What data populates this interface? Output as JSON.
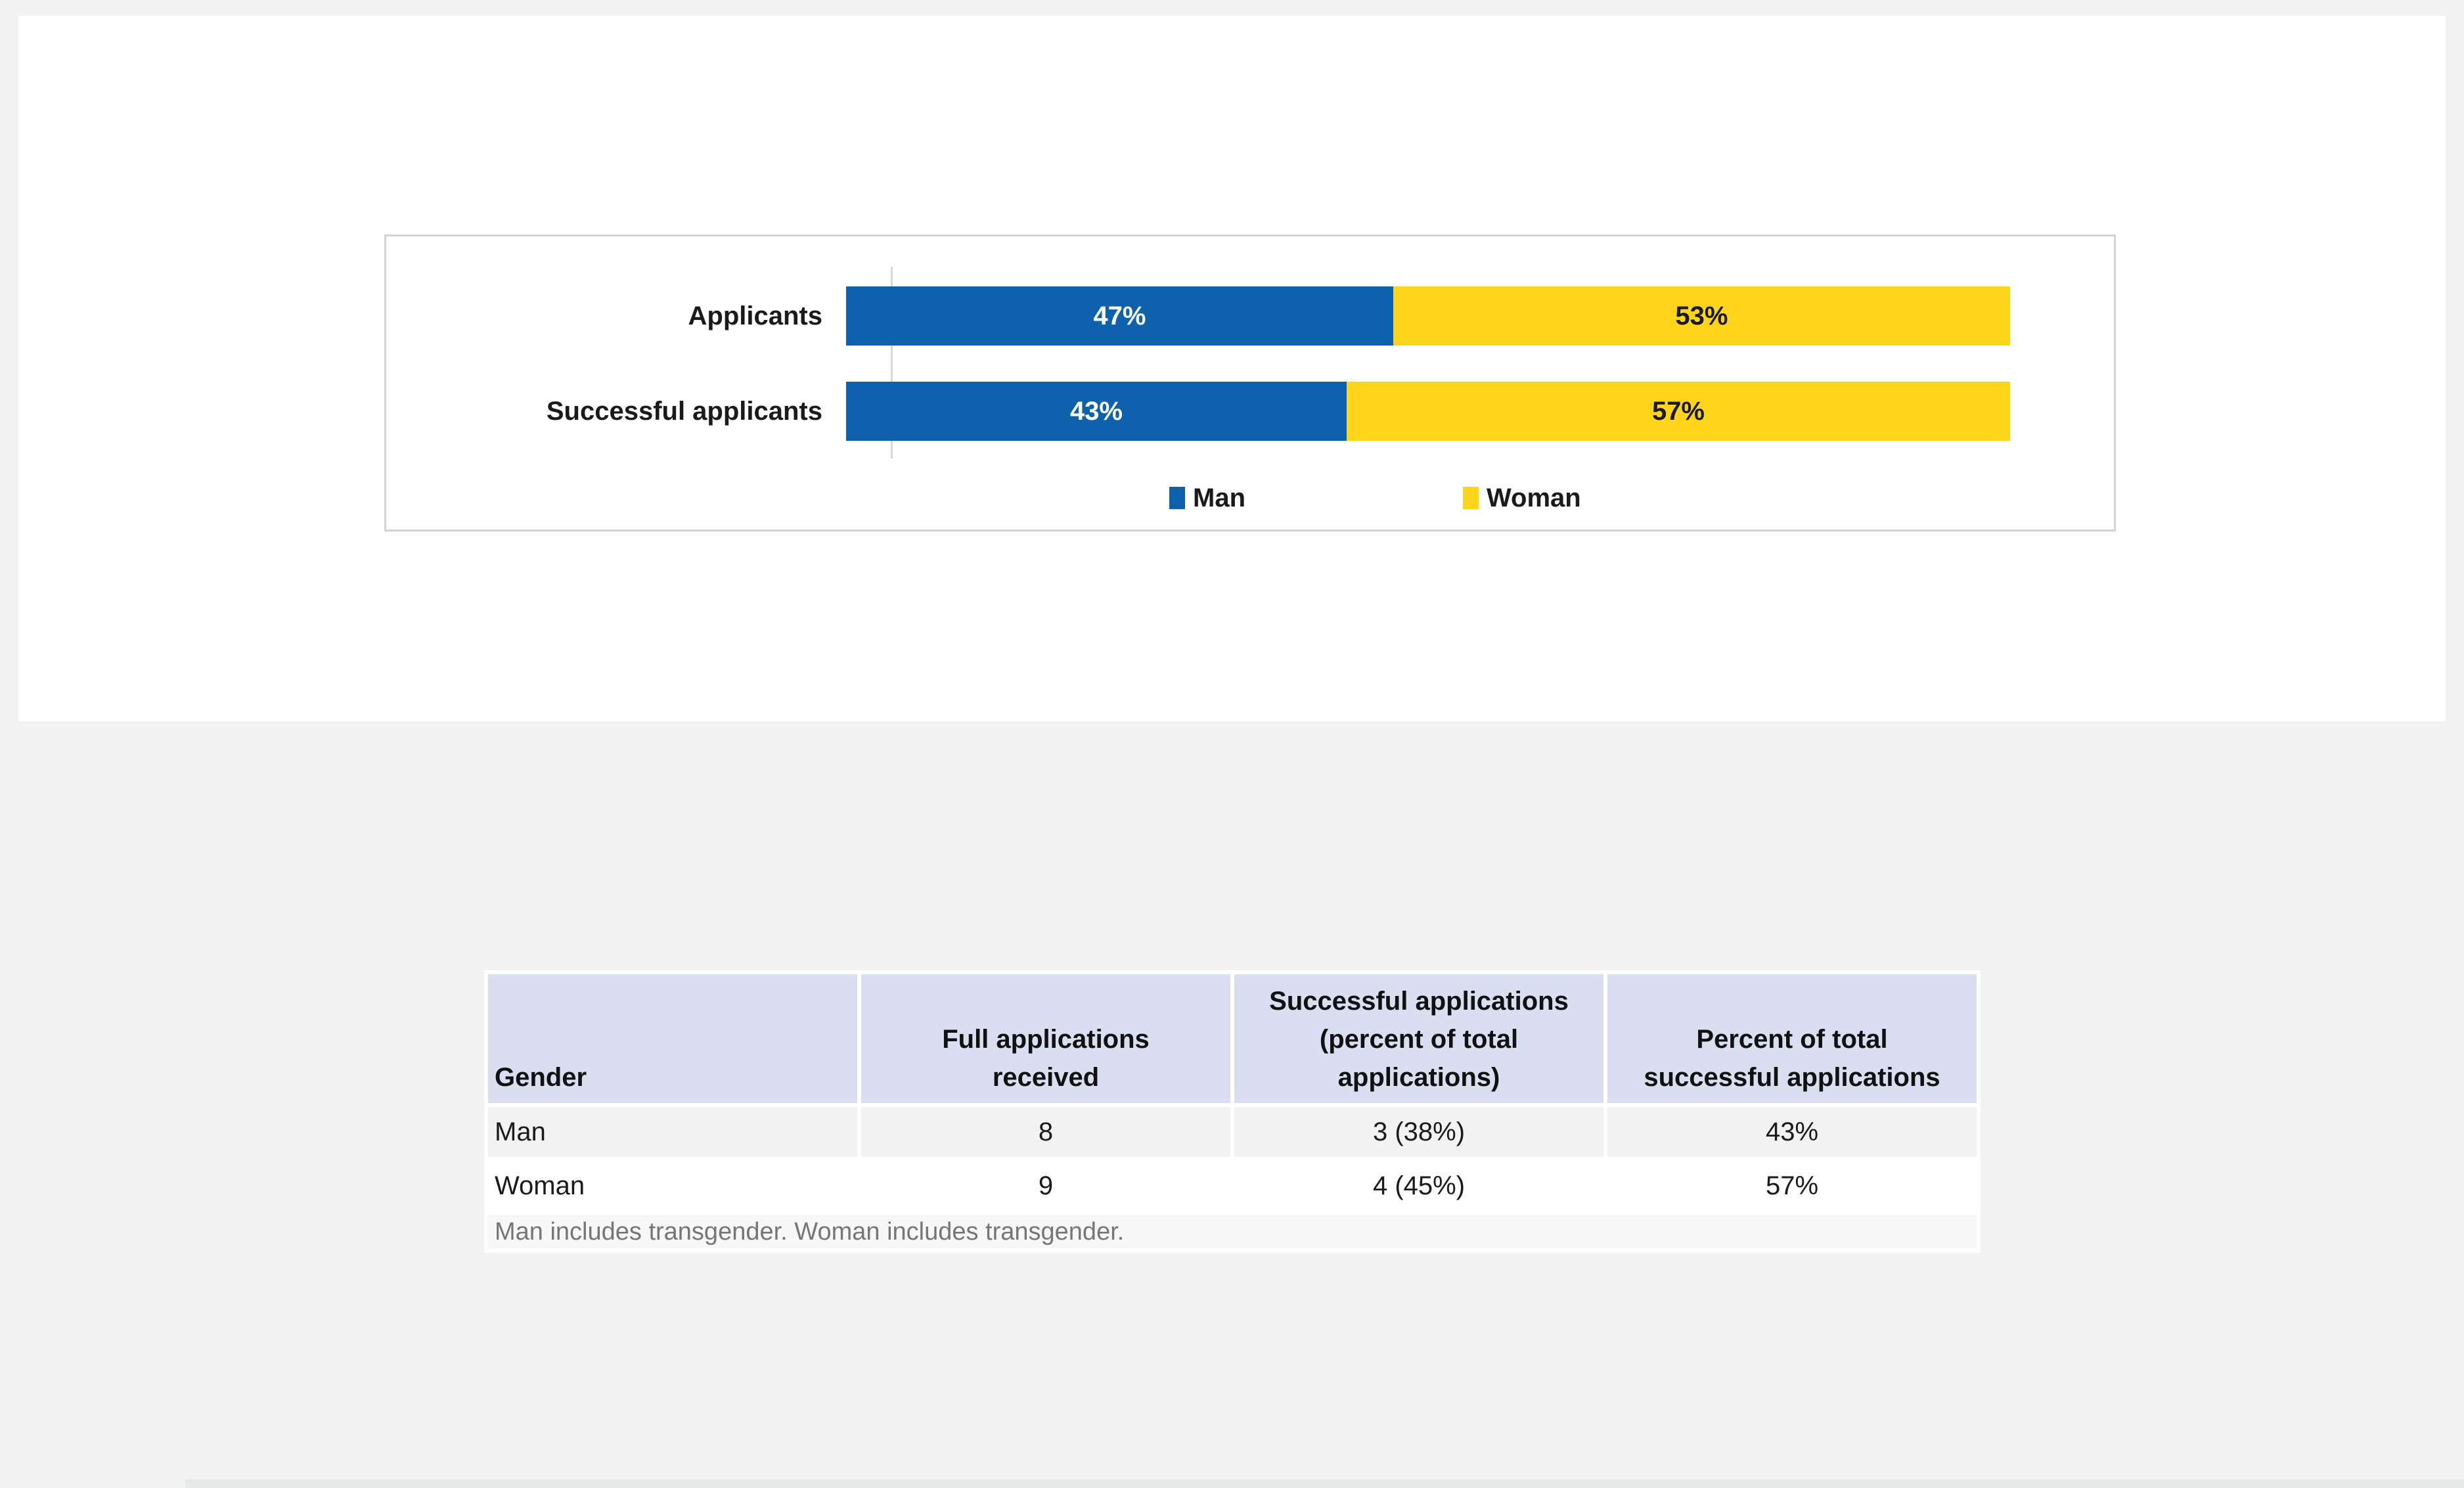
{
  "chart_data": {
    "type": "bar",
    "orientation": "horizontal",
    "stacked": true,
    "units": "percent",
    "title": "",
    "xlabel": "",
    "ylabel": "",
    "xlim": [
      0,
      100
    ],
    "grid": false,
    "legend_position": "bottom-center",
    "categories": [
      "Applicants",
      "Successful applicants"
    ],
    "series": [
      {
        "name": "Man",
        "color": "#0E61AC",
        "label_color": "#FFFFFF",
        "values": [
          47,
          43
        ]
      },
      {
        "name": "Woman",
        "color": "#FFD41C",
        "label_color": "#1A1A1A",
        "values": [
          53,
          57
        ]
      }
    ],
    "data_labels": [
      [
        "47%",
        "53%"
      ],
      [
        "43%",
        "57%"
      ]
    ]
  },
  "table": {
    "headers": [
      "Gender",
      "Full applications\nreceived",
      "Successful applications\n(percent of total\napplications)",
      "Percent of total\nsuccessful applications"
    ],
    "rows": [
      [
        "Man",
        "8",
        "3 (38%)",
        "43%"
      ],
      [
        "Woman",
        "9",
        "4 (45%)",
        "57%"
      ]
    ],
    "footnote": "Man includes transgender. Woman includes transgender.",
    "colors": {
      "header_bg": "#D9DFF1",
      "alt_row_bg": "#F2F2F2",
      "footnote_bg": "#F7F7F7",
      "footnote_text": "#767676"
    }
  },
  "page": {
    "background": "#F2F2F2",
    "panel_background": "#FFFFFF",
    "chart_border": "#D3D3D3"
  }
}
